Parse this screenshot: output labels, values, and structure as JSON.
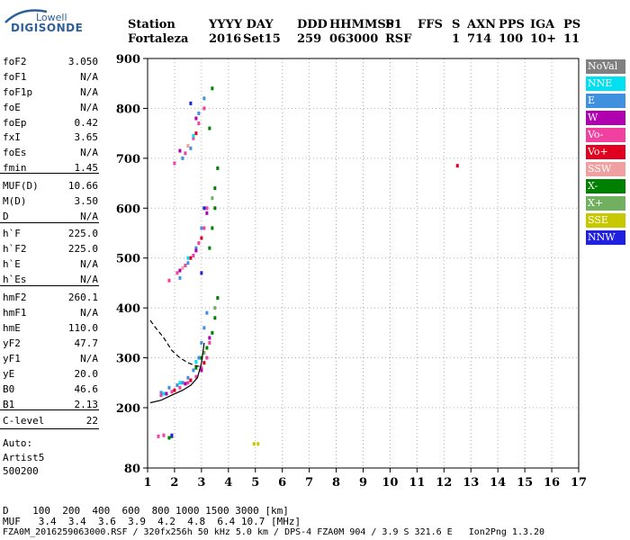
{
  "logo": {
    "top": "Lowell",
    "main": "DIGISONDE"
  },
  "header": {
    "station_label": "Station",
    "station": "Fortaleza",
    "date_label": "YYYY DAY",
    "year": "2016",
    "date": "Set15",
    "ddd_label": "DDD",
    "ddd": "259",
    "time_label": "HHMMSS",
    "time": "063000",
    "p1_label": "P1",
    "p1": "RSF",
    "ffs_label": "FFS",
    "ffs": "",
    "s_label": "S",
    "s": "1",
    "axn_label": "AXN",
    "axn": "714",
    "pps_label": "PPS",
    "pps": "100",
    "iga_label": "IGA",
    "iga": "10+",
    "ps_label": "PS",
    "ps": "11"
  },
  "params": [
    {
      "label": "foF2",
      "value": "3.050"
    },
    {
      "label": "foF1",
      "value": "N/A"
    },
    {
      "label": "foF1p",
      "value": "N/A"
    },
    {
      "label": "foE",
      "value": "N/A"
    },
    {
      "label": "foEp",
      "value": "0.42"
    },
    {
      "label": "fxI",
      "value": "3.65"
    },
    {
      "label": "foEs",
      "value": "N/A"
    },
    {
      "label": "fmin",
      "value": "1.45"
    },
    {
      "label": "MUF(D)",
      "value": "10.66"
    },
    {
      "label": "M(D)",
      "value": "3.50"
    },
    {
      "label": "D",
      "value": "N/A"
    },
    {
      "label": "h`F",
      "value": "225.0"
    },
    {
      "label": "h`F2",
      "value": "225.0"
    },
    {
      "label": "h`E",
      "value": "N/A"
    },
    {
      "label": "h`Es",
      "value": "N/A"
    },
    {
      "label": "hmF2",
      "value": "260.1"
    },
    {
      "label": "hmF1",
      "value": "N/A"
    },
    {
      "label": "hmE",
      "value": "110.0"
    },
    {
      "label": "yF2",
      "value": "47.7"
    },
    {
      "label": "yF1",
      "value": "N/A"
    },
    {
      "label": "yE",
      "value": "20.0"
    },
    {
      "label": "B0",
      "value": "46.6"
    },
    {
      "label": "B1",
      "value": "2.13"
    },
    {
      "label": "C-level",
      "value": "22"
    }
  ],
  "auto_notes": [
    "Auto:",
    "Artist5",
    "500200"
  ],
  "legend": [
    {
      "label": "NoVal",
      "color": "#808080"
    },
    {
      "label": "NNE",
      "color": "#00e0f0"
    },
    {
      "label": "E",
      "color": "#4090e0"
    },
    {
      "label": "W",
      "color": "#b000b0"
    },
    {
      "label": "Vo-",
      "color": "#f040a0"
    },
    {
      "label": "Vo+",
      "color": "#e00020"
    },
    {
      "label": "SSW",
      "color": "#f0a0a0"
    },
    {
      "label": "X-",
      "color": "#008000"
    },
    {
      "label": "X+",
      "color": "#70b060"
    },
    {
      "label": "SSE",
      "color": "#c8c800"
    },
    {
      "label": "NNW",
      "color": "#2020e0"
    }
  ],
  "bottom": {
    "d_row": "D    100  200  400  600  800 1000 1500 3000 [km]",
    "muf_row": "MUF   3.4  3.4  3.6  3.9  4.2  4.8  6.4 10.7 [MHz]",
    "footer": "FZA0M_2016259063000.RSF / 320fx256h 50 kHz 5.0 km / DPS-4 FZA0M 904 / 3.9 S 321.6 E   Ion2Png 1.3.20"
  },
  "chart_data": {
    "type": "scatter",
    "xlim": [
      1,
      17
    ],
    "ylim": [
      80,
      900
    ],
    "xticks": [
      "1",
      "2",
      "3",
      "4",
      "5",
      "6",
      "7",
      "8",
      "9",
      "10",
      "11",
      "12",
      "13",
      "14",
      "15",
      "16",
      "17"
    ],
    "yticks": [
      "80",
      "200",
      "300",
      "400",
      "500",
      "600",
      "700",
      "800",
      "900"
    ],
    "grid": true,
    "series": [
      {
        "name": "E",
        "color": "#4090e0",
        "points": [
          [
            1.5,
            230
          ],
          [
            1.8,
            240
          ],
          [
            2.1,
            245
          ],
          [
            2.3,
            250
          ],
          [
            2.5,
            260
          ],
          [
            2.7,
            275
          ],
          [
            2.9,
            300
          ],
          [
            3.0,
            330
          ],
          [
            3.1,
            360
          ],
          [
            3.2,
            390
          ],
          [
            2.2,
            460
          ],
          [
            2.5,
            490
          ],
          [
            2.8,
            520
          ],
          [
            3.0,
            560
          ],
          [
            2.3,
            700
          ],
          [
            2.6,
            720
          ],
          [
            2.9,
            790
          ],
          [
            3.1,
            820
          ]
        ]
      },
      {
        "name": "Vo-",
        "color": "#f040a0",
        "points": [
          [
            1.5,
            225
          ],
          [
            1.9,
            232
          ],
          [
            2.2,
            240
          ],
          [
            2.5,
            250
          ],
          [
            2.8,
            262
          ],
          [
            3.0,
            280
          ],
          [
            3.2,
            300
          ],
          [
            3.3,
            330
          ],
          [
            1.8,
            455
          ],
          [
            2.1,
            470
          ],
          [
            2.4,
            485
          ],
          [
            2.7,
            505
          ],
          [
            2.9,
            530
          ],
          [
            3.1,
            560
          ],
          [
            3.2,
            600
          ],
          [
            2.0,
            690
          ],
          [
            2.4,
            710
          ],
          [
            2.7,
            740
          ],
          [
            2.9,
            770
          ],
          [
            3.1,
            800
          ],
          [
            1.4,
            143
          ],
          [
            1.6,
            145
          ]
        ]
      },
      {
        "name": "Vo+",
        "color": "#e00020",
        "points": [
          [
            2.0,
            235
          ],
          [
            2.6,
            255
          ],
          [
            3.1,
            290
          ],
          [
            2.6,
            500
          ],
          [
            3.0,
            540
          ],
          [
            2.8,
            750
          ],
          [
            12.5,
            685
          ]
        ]
      },
      {
        "name": "W",
        "color": "#b000b0",
        "points": [
          [
            1.7,
            228
          ],
          [
            2.4,
            248
          ],
          [
            3.0,
            275
          ],
          [
            3.3,
            340
          ],
          [
            2.2,
            475
          ],
          [
            2.8,
            515
          ],
          [
            3.2,
            590
          ],
          [
            2.2,
            715
          ],
          [
            2.8,
            780
          ]
        ]
      },
      {
        "name": "X-",
        "color": "#008000",
        "points": [
          [
            2.8,
            280
          ],
          [
            3.0,
            300
          ],
          [
            3.2,
            320
          ],
          [
            3.4,
            350
          ],
          [
            3.5,
            380
          ],
          [
            3.6,
            420
          ],
          [
            3.3,
            520
          ],
          [
            3.4,
            560
          ],
          [
            3.5,
            600
          ],
          [
            3.5,
            640
          ],
          [
            3.6,
            680
          ],
          [
            3.3,
            760
          ],
          [
            3.4,
            840
          ],
          [
            1.8,
            140
          ],
          [
            1.9,
            143
          ]
        ]
      },
      {
        "name": "X+",
        "color": "#70b060",
        "points": [
          [
            3.1,
            310
          ],
          [
            3.5,
            400
          ],
          [
            3.4,
            620
          ]
        ]
      },
      {
        "name": "SSE",
        "color": "#c8c800",
        "points": [
          [
            4.95,
            128
          ],
          [
            5.1,
            128
          ]
        ]
      },
      {
        "name": "NNW",
        "color": "#2020e0",
        "points": [
          [
            1.9,
            145
          ],
          [
            3.0,
            470
          ],
          [
            3.1,
            600
          ],
          [
            2.6,
            810
          ]
        ]
      },
      {
        "name": "NNE",
        "color": "#00e0f0",
        "points": [
          [
            1.6,
            228
          ],
          [
            2.2,
            250
          ],
          [
            2.8,
            292
          ],
          [
            2.5,
            500
          ],
          [
            2.7,
            745
          ]
        ]
      },
      {
        "name": "SSW",
        "color": "#f0a0a0",
        "points": [
          [
            2.3,
            480
          ],
          [
            2.5,
            725
          ]
        ]
      }
    ],
    "profile_line": {
      "x": [
        1.1,
        1.5,
        1.9,
        2.3,
        2.6,
        2.85,
        3.0,
        3.1
      ],
      "y": [
        210,
        215,
        225,
        235,
        245,
        260,
        290,
        330
      ]
    },
    "dashed_line": {
      "x": [
        1.1,
        1.3,
        1.6,
        1.9,
        2.2,
        2.5,
        2.75,
        2.95
      ],
      "y": [
        375,
        360,
        340,
        315,
        300,
        290,
        285,
        282
      ]
    }
  }
}
